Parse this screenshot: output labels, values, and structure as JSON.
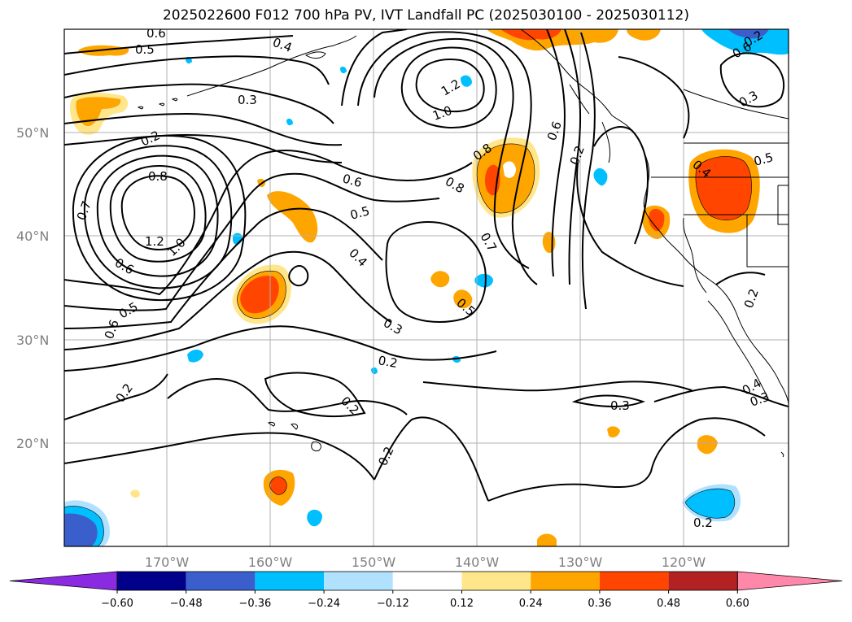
{
  "title": "2025022600 F012 700 hPa PV, IVT Landfall PC (2025030100 - 2025030112)",
  "map": {
    "lat_labels": [
      "50°N",
      "40°N",
      "30°N",
      "20°N"
    ],
    "lon_labels": [
      "170°W",
      "160°W",
      "150°W",
      "140°W",
      "130°W",
      "120°W"
    ],
    "contour_labels": [
      "0.6",
      "0.5",
      "0.4",
      "0.3",
      "0.2",
      "0.8",
      "0.7",
      "1.2",
      "1.0",
      "0.6",
      "0.5",
      "0.6",
      "0.2",
      "1.2",
      "1.0",
      "0.8",
      "0.8",
      "0.6",
      "0.2",
      "0.6",
      "0.5",
      "0.4",
      "0.7",
      "0.3",
      "0.2",
      "0.5",
      "0.2",
      "0.2",
      "0.2",
      "0.3",
      "0.4",
      "0.5",
      "0.2",
      "0.3",
      "0.2",
      "0.6",
      "0.4",
      "0.3"
    ]
  },
  "colorbar": {
    "ticks": [
      "−0.60",
      "−0.48",
      "−0.36",
      "−0.24",
      "−0.12",
      "0.12",
      "0.24",
      "0.36",
      "0.48",
      "0.60"
    ],
    "colors": [
      "#8a2be2",
      "#00008b",
      "#3a5fcd",
      "#00bfff",
      "#b0e2ff",
      "#ffffff",
      "#ffe68a",
      "#ffa500",
      "#ff4500",
      "#b22222",
      "#ff88aa"
    ]
  }
}
